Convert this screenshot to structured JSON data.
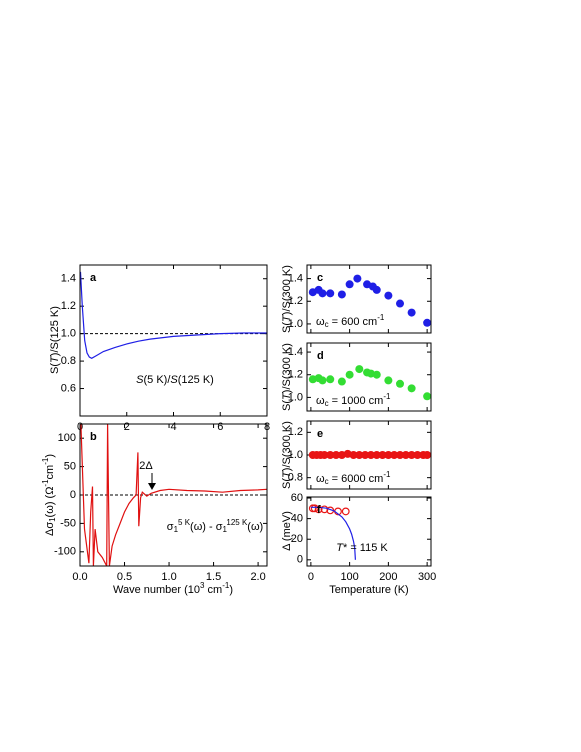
{
  "chart_data": [
    {
      "type": "line",
      "panel_label": "a",
      "ylabel": [
        {
          "text": "S("
        },
        {
          "text": "T",
          "style": "italic"
        },
        {
          "text": ")/S(125 K)"
        }
      ],
      "annotation": [
        {
          "text": "S",
          "style": "italic"
        },
        {
          "text": "(5 K)/"
        },
        {
          "text": "S",
          "style": "italic"
        },
        {
          "text": "(125 K)"
        }
      ],
      "xlim": [
        0,
        8
      ],
      "xticks": [
        0,
        2,
        4,
        6,
        8
      ],
      "ylim": [
        0.4,
        1.5
      ],
      "yticks": [
        0.6,
        0.8,
        {
          "value": 1.0,
          "label": "1.0"
        },
        1.2,
        1.4
      ],
      "reference_line": 1,
      "series": [
        {
          "color": "#1f1fe6",
          "x": [
            0.02,
            0.1,
            0.2,
            0.3,
            0.4,
            0.5,
            0.7,
            1,
            1.5,
            2,
            2.5,
            3,
            4,
            5,
            6,
            7,
            8
          ],
          "values": [
            1.45,
            1.2,
            0.95,
            0.86,
            0.83,
            0.82,
            0.84,
            0.87,
            0.9,
            0.925,
            0.945,
            0.96,
            0.98,
            0.99,
            1.0,
            1.005,
            1.005
          ]
        }
      ]
    },
    {
      "type": "line",
      "panel_label": "b",
      "ylabel": [
        {
          "text": "Δσ"
        },
        {
          "text": "1",
          "script": "sub"
        },
        {
          "text": "(ω) (Ω"
        },
        {
          "text": "-1",
          "script": "sup"
        },
        {
          "text": "cm"
        },
        {
          "text": "-1",
          "script": "sup"
        },
        {
          "text": ")"
        }
      ],
      "xlabel": [
        {
          "text": "Wave number (10"
        },
        {
          "text": "3",
          "script": "sup"
        },
        {
          "text": " cm"
        },
        {
          "text": "-1",
          "script": "sup"
        },
        {
          "text": ")"
        }
      ],
      "annotation": [
        {
          "text": "σ"
        },
        {
          "text": "1",
          "script": "sub"
        },
        {
          "text": "5 K",
          "script": "sup"
        },
        {
          "text": "(ω) - σ"
        },
        {
          "text": "1",
          "script": "sub"
        },
        {
          "text": "125 K",
          "script": "sup"
        },
        {
          "text": "(ω)"
        }
      ],
      "arrow_label": "2Δ",
      "xlim": [
        0,
        2.1
      ],
      "xticks": [
        {
          "value": 0,
          "label": "0.0"
        },
        0.5,
        {
          "value": 1,
          "label": "1.0"
        },
        1.5,
        {
          "value": 2,
          "label": "2.0"
        }
      ],
      "ylim": [
        -125,
        125
      ],
      "yticks": [
        -100,
        -50,
        0,
        50,
        100
      ],
      "reference_line": 0,
      "series": [
        {
          "color": "#e01010",
          "x": [
            0.01,
            0.05,
            0.1,
            0.12,
            0.14,
            0.15,
            0.17,
            0.2,
            0.25,
            0.3,
            0.31,
            0.33,
            0.36,
            0.4,
            0.45,
            0.5,
            0.55,
            0.6,
            0.63,
            0.65,
            0.66,
            0.68,
            0.7,
            0.75,
            0.8,
            0.9,
            1.0,
            1.2,
            1.4,
            1.6,
            1.8,
            2.0,
            2.1
          ],
          "values": [
            125,
            -60,
            -120,
            -30,
            15,
            -125,
            -60,
            -100,
            -110,
            -125,
            125,
            -125,
            -90,
            -70,
            -50,
            -30,
            -15,
            -5,
            0,
            75,
            -55,
            -5,
            5,
            -2,
            3,
            8,
            10,
            8,
            7,
            5,
            8,
            9,
            10
          ]
        }
      ]
    },
    {
      "type": "scatter",
      "panel_label": "c",
      "show_xtick_labels": false,
      "ylabel": [
        {
          "text": "S("
        },
        {
          "text": "T",
          "style": "italic"
        },
        {
          "text": ")/S(300 K)"
        }
      ],
      "annotation": [
        {
          "text": "ω"
        },
        {
          "text": "c",
          "script": "sub"
        },
        {
          "text": " = 600 cm"
        },
        {
          "text": "-1",
          "script": "sup"
        }
      ],
      "xlim": [
        -10,
        310
      ],
      "xticks": [
        0,
        100,
        200,
        300
      ],
      "ylim": [
        0.92,
        1.52
      ],
      "yticks": [
        {
          "value": 1.0,
          "label": "1.0"
        },
        1.2,
        1.4
      ],
      "series": [
        {
          "color": "#1f1fe6",
          "x": [
            5,
            20,
            30,
            50,
            80,
            100,
            120,
            145,
            160,
            170,
            200,
            230,
            260,
            300
          ],
          "values": [
            1.28,
            1.3,
            1.27,
            1.27,
            1.26,
            1.35,
            1.4,
            1.35,
            1.33,
            1.3,
            1.25,
            1.18,
            1.1,
            1.01
          ]
        }
      ]
    },
    {
      "type": "scatter",
      "panel_label": "d",
      "show_xtick_labels": false,
      "ylabel": [
        {
          "text": "S("
        },
        {
          "text": "T",
          "style": "italic"
        },
        {
          "text": ")/S(300 K)"
        }
      ],
      "annotation": [
        {
          "text": "ω"
        },
        {
          "text": "c",
          "script": "sub"
        },
        {
          "text": " = 1000 cm"
        },
        {
          "text": "-1",
          "script": "sup"
        }
      ],
      "xlim": [
        -10,
        310
      ],
      "xticks": [
        0,
        100,
        200,
        300
      ],
      "ylim": [
        0.88,
        1.48
      ],
      "yticks": [
        {
          "value": 1.0,
          "label": "1.0"
        },
        1.2,
        1.4
      ],
      "series": [
        {
          "color": "#33dd33",
          "x": [
            5,
            20,
            30,
            50,
            80,
            100,
            125,
            145,
            155,
            170,
            200,
            230,
            260,
            300
          ],
          "values": [
            1.16,
            1.17,
            1.15,
            1.16,
            1.14,
            1.2,
            1.25,
            1.22,
            1.21,
            1.2,
            1.15,
            1.12,
            1.08,
            1.01
          ]
        }
      ]
    },
    {
      "type": "scatter",
      "panel_label": "e",
      "show_xtick_labels": false,
      "ylabel": [
        {
          "text": "S("
        },
        {
          "text": "T",
          "style": "italic"
        },
        {
          "text": ")/S(300 K)"
        }
      ],
      "annotation": [
        {
          "text": "ω"
        },
        {
          "text": "c",
          "script": "sub"
        },
        {
          "text": " = 6000 cm"
        },
        {
          "text": "-1",
          "script": "sup"
        }
      ],
      "xlim": [
        -10,
        310
      ],
      "xticks": [
        0,
        100,
        200,
        300
      ],
      "ylim": [
        0.7,
        1.3
      ],
      "yticks": [
        0.8,
        {
          "value": 1.0,
          "label": "1.0"
        },
        1.2
      ],
      "series": [
        {
          "color": "#e81515",
          "x": [
            5,
            15,
            25,
            35,
            50,
            65,
            80,
            95,
            110,
            125,
            140,
            155,
            170,
            185,
            200,
            215,
            230,
            245,
            260,
            275,
            290,
            300
          ],
          "values": [
            1.0,
            1.0,
            1.0,
            1.0,
            1.0,
            1.0,
            1.0,
            1.01,
            1.0,
            1.0,
            1.0,
            1.0,
            1.0,
            1.0,
            1.0,
            1.0,
            1.0,
            1.0,
            1.0,
            1.0,
            1.0,
            1.0
          ]
        }
      ]
    },
    {
      "type": "scatter",
      "panel_label": "f",
      "ylabel": [
        {
          "text": "Δ (meV)"
        }
      ],
      "xlabel": [
        {
          "text": "Temperature (K)"
        }
      ],
      "annotation": [
        {
          "text": "T",
          "style": "italic"
        },
        {
          "text": "* = 115 K"
        }
      ],
      "xlim": [
        -10,
        310
      ],
      "xticks": [
        0,
        100,
        200,
        300
      ],
      "ylim": [
        -6,
        61
      ],
      "yticks": [
        0,
        20,
        40,
        60
      ],
      "series": [
        {
          "type": "scatter",
          "filled": false,
          "color": "#e81515",
          "x": [
            5,
            10,
            20,
            35,
            50,
            70,
            90
          ],
          "values": [
            50,
            50,
            49,
            49,
            48,
            47,
            47
          ]
        },
        {
          "type": "line",
          "color": "#1f1fe6",
          "x": [
            0,
            20,
            40,
            60,
            80,
            90,
            100,
            105,
            110,
            113,
            115
          ],
          "values": [
            51,
            51,
            50.1,
            47.5,
            41.7,
            36.9,
            30,
            25,
            18.1,
            11.6,
            0
          ]
        }
      ]
    }
  ]
}
